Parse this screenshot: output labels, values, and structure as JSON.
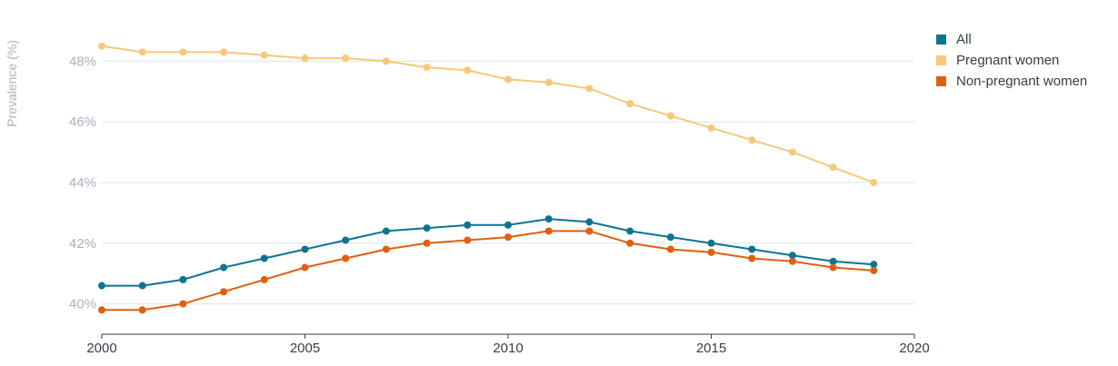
{
  "chart_data": {
    "type": "line",
    "ylabel": "Prevalence (%)",
    "xlabel": "",
    "x": [
      2000,
      2001,
      2002,
      2003,
      2004,
      2005,
      2006,
      2007,
      2008,
      2009,
      2010,
      2011,
      2012,
      2013,
      2014,
      2015,
      2016,
      2017,
      2018,
      2019
    ],
    "series": [
      {
        "name": "All",
        "color": "#0d7490",
        "values": [
          40.6,
          40.6,
          40.8,
          41.2,
          41.5,
          41.8,
          42.1,
          42.4,
          42.5,
          42.6,
          42.6,
          42.8,
          42.7,
          42.4,
          42.2,
          42.0,
          41.8,
          41.6,
          41.4,
          41.3
        ]
      },
      {
        "name": "Pregnant women",
        "color": "#f8c779",
        "values": [
          48.5,
          48.3,
          48.3,
          48.3,
          48.2,
          48.1,
          48.1,
          48.0,
          47.8,
          47.7,
          47.4,
          47.3,
          47.1,
          46.6,
          46.2,
          45.8,
          45.4,
          45.0,
          44.5,
          44.0
        ]
      },
      {
        "name": "Non-pregnant women",
        "color": "#e05f10",
        "values": [
          39.8,
          39.8,
          40.0,
          40.4,
          40.8,
          41.2,
          41.5,
          41.8,
          42.0,
          42.1,
          42.2,
          42.4,
          42.4,
          42.0,
          41.8,
          41.7,
          41.5,
          41.4,
          41.2,
          41.1
        ]
      }
    ],
    "xlim": [
      2000,
      2020
    ],
    "ylim": [
      39.0,
      49.0
    ],
    "xticks": [
      2000,
      2005,
      2010,
      2015,
      2020
    ],
    "xtick_labels": [
      "2000",
      "2005",
      "2010",
      "2015",
      "2020"
    ],
    "yticks": [
      40,
      42,
      44,
      46,
      48
    ],
    "ytick_labels": [
      "40%",
      "42%",
      "44%",
      "46%",
      "48%"
    ],
    "grid": true,
    "legend_position": "top-right"
  }
}
